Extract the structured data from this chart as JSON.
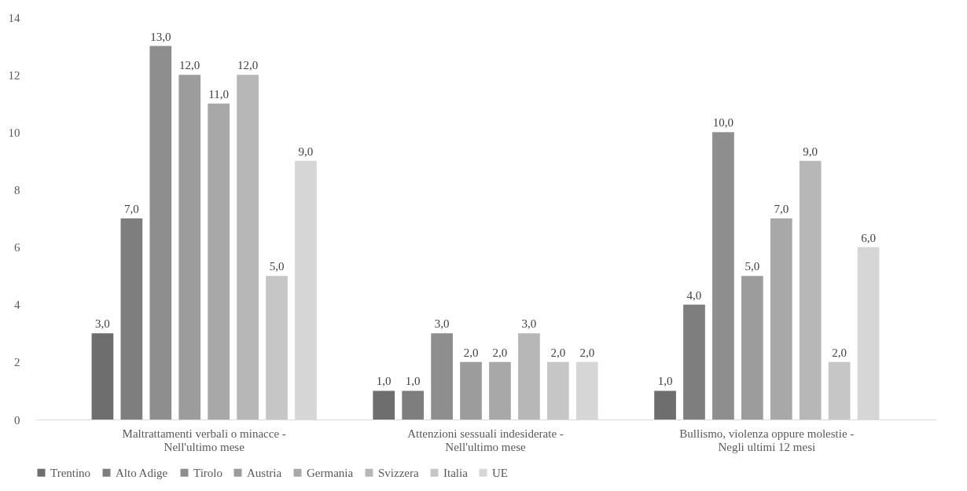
{
  "chart_data": {
    "type": "bar",
    "categories": [
      "Maltrattamenti verbali o minacce -\nNell'ultimo mese",
      "Attenzioni sessuali indesiderate -\nNell'ultimo mese",
      "Bullismo, violenza oppure molestie -\nNegli ultimi 12 mesi"
    ],
    "series": [
      {
        "name": "Trentino",
        "color": "#6e6e6e",
        "values": [
          3,
          1,
          1
        ],
        "value_labels": [
          "3,0",
          "1,0",
          "1,0"
        ]
      },
      {
        "name": "Alto Adige",
        "color": "#7e7e7e",
        "values": [
          7,
          1,
          4
        ],
        "value_labels": [
          "7,0",
          "1,0",
          "4,0"
        ]
      },
      {
        "name": "Tirolo",
        "color": "#8e8e8e",
        "values": [
          13,
          3,
          10
        ],
        "value_labels": [
          "13,0",
          "3,0",
          "10,0"
        ]
      },
      {
        "name": "Austria",
        "color": "#9c9c9c",
        "values": [
          12,
          2,
          5
        ],
        "value_labels": [
          "12,0",
          "2,0",
          "5,0"
        ]
      },
      {
        "name": "Germania",
        "color": "#a8a8a8",
        "values": [
          11,
          2,
          7
        ],
        "value_labels": [
          "11,0",
          "2,0",
          "7,0"
        ]
      },
      {
        "name": "Svizzera",
        "color": "#b7b7b7",
        "values": [
          12,
          3,
          9
        ],
        "value_labels": [
          "12,0",
          "3,0",
          "9,0"
        ]
      },
      {
        "name": "Italia",
        "color": "#c6c6c6",
        "values": [
          5,
          2,
          2
        ],
        "value_labels": [
          "5,0",
          "2,0",
          "2,0"
        ]
      },
      {
        "name": "UE",
        "color": "#d6d6d6",
        "values": [
          9,
          2,
          6
        ],
        "value_labels": [
          "9,0",
          "2,0",
          "6,0"
        ]
      }
    ],
    "ylim": [
      0,
      14
    ],
    "yticks": [
      0,
      2,
      4,
      6,
      8,
      10,
      12,
      14
    ],
    "grid": false,
    "legend": "bottom"
  }
}
